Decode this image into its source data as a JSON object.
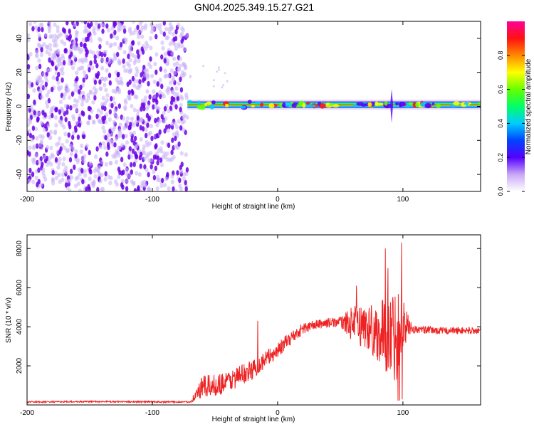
{
  "title": "GN04.2025.349.15.27.G21",
  "colors": {
    "snr_line": "#ee2222",
    "axis": "#000000",
    "scatter_strong": "#6a00e8",
    "scatter_light": "#c9b0f5"
  },
  "chart_data": [
    {
      "type": "heatmap",
      "title": "GN04.2025.349.15.27.G21",
      "xlabel": "Height of straight line (km)",
      "ylabel": "Frequency (Hz)",
      "xlim": [
        -200,
        162
      ],
      "ylim": [
        -50,
        50
      ],
      "x_ticks": [
        -200,
        -100,
        0,
        100
      ],
      "y_ticks": [
        40,
        20,
        0,
        -20,
        -40
      ],
      "grid": false,
      "noise_region_x": [
        -200,
        -72
      ],
      "signal_band_x": [
        -72,
        162
      ],
      "signal_band_freq_hz": 1,
      "colorbar": {
        "label": "Normalized spectral amplitude",
        "range": [
          0,
          1
        ],
        "ticks": [
          "0.0",
          "0.2",
          "0.4",
          "0.6",
          "0.8"
        ],
        "colormap": "rainbow"
      }
    },
    {
      "type": "line",
      "xlabel": "Height of straight line (km)",
      "ylabel": "SNR (10 * v/v)",
      "xlim": [
        -200,
        162
      ],
      "ylim": [
        0,
        8700
      ],
      "x_ticks": [
        -200,
        -100,
        0,
        100
      ],
      "y_ticks": [
        2000,
        4000,
        6000,
        8000
      ],
      "grid": false,
      "envelope": {
        "x": [
          -200,
          -150,
          -100,
          -70,
          -60,
          -50,
          -40,
          -30,
          -20,
          -10,
          0,
          10,
          20,
          30,
          40,
          50,
          60,
          70,
          80,
          90,
          95,
          100,
          105,
          110,
          130,
          150,
          162
        ],
        "y": [
          150,
          170,
          160,
          150,
          900,
          1000,
          1200,
          1500,
          1800,
          2300,
          2800,
          3400,
          3900,
          4100,
          4200,
          4250,
          4150,
          4000,
          3700,
          3500,
          3800,
          4200,
          4000,
          3850,
          3800,
          3800,
          3800
        ],
        "noise": [
          40,
          40,
          40,
          40,
          600,
          550,
          550,
          550,
          500,
          450,
          400,
          350,
          300,
          250,
          250,
          250,
          900,
          1200,
          1500,
          2200,
          2600,
          1500,
          400,
          200,
          180,
          180,
          180
        ]
      },
      "peaks": [
        {
          "x": 96,
          "y": 8600
        },
        {
          "x": 86,
          "y": 8000
        },
        {
          "x": 99,
          "y": 8300
        },
        {
          "x": 63,
          "y": 6100
        },
        {
          "x": 88,
          "y": 7000
        },
        {
          "x": -16,
          "y": 4300
        }
      ]
    }
  ]
}
